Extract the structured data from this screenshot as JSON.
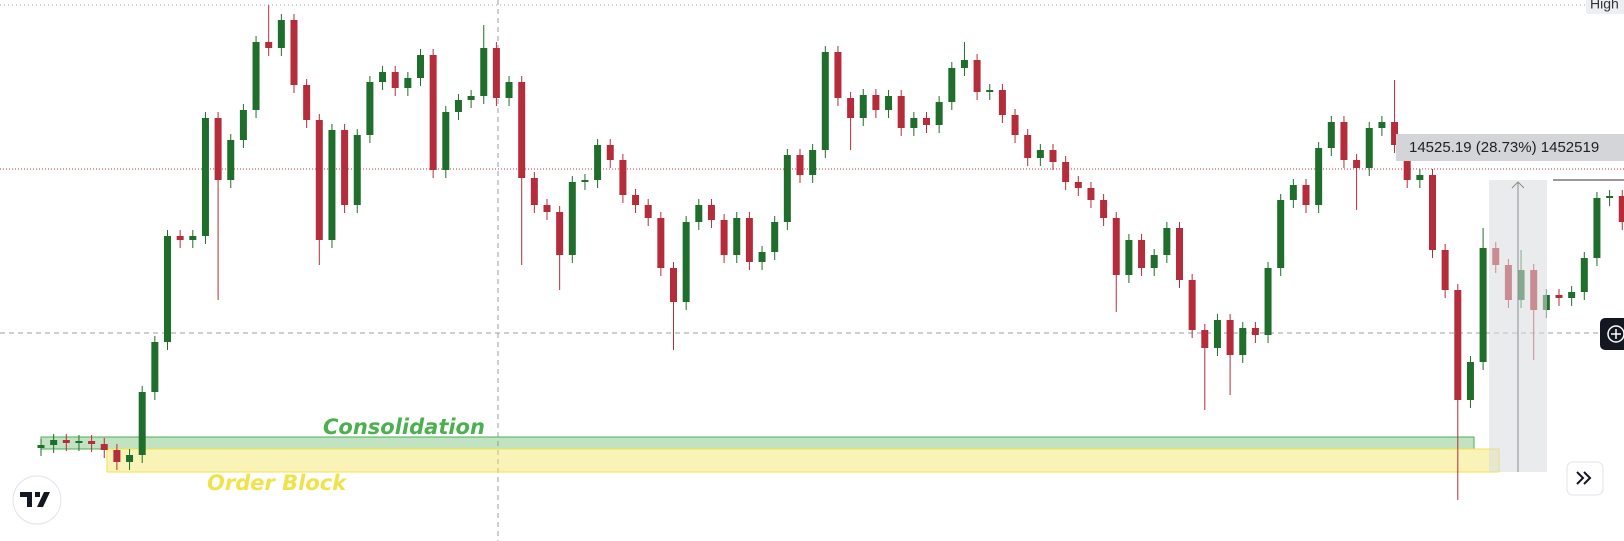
{
  "chart_data": {
    "type": "candlestick",
    "up_color": "#1f6e2c",
    "down_color": "#b52d3b",
    "ylim": [
      46950,
      74000
    ],
    "open": [
      51600,
      51750,
      52000,
      51850,
      51950,
      51800,
      51500,
      50900,
      51250,
      54400,
      56900,
      62200,
      62000,
      62200,
      68100,
      65000,
      67000,
      68500,
      71900,
      71600,
      73000,
      69750,
      68000,
      62000,
      67500,
      63750,
      67250,
      69900,
      70400,
      69600,
      70100,
      71250,
      65500,
      68400,
      69000,
      69200,
      71600,
      69100,
      69900,
      65100,
      63750,
      63400,
      61250,
      64900,
      65000,
      66750,
      66000,
      64250,
      63750,
      63100,
      60600,
      58900,
      62900,
      63750,
      63000,
      61250,
      63100,
      60900,
      61400,
      62900,
      66250,
      65250,
      66500,
      71400,
      69100,
      68100,
      69250,
      68500,
      69200,
      67600,
      68100,
      67750,
      68900,
      70600,
      71000,
      69400,
      69500,
      68250,
      67250,
      66100,
      66500,
      65900,
      64900,
      64600,
      64000,
      63100,
      60250,
      62000,
      60600,
      61250,
      62600,
      60000,
      57500,
      56600,
      58000,
      56250,
      57600,
      57250,
      60600,
      64000,
      64750,
      63750,
      66600,
      67900,
      66000,
      65600,
      67600,
      67900,
      66750,
      65000,
      65250,
      61500,
      59500,
      54000,
      55900,
      61600,
      60750,
      59000,
      60500,
      58500,
      59250,
      59100,
      59400,
      61100,
      64100,
      64200
    ],
    "high": [
      52050,
      52300,
      52300,
      52250,
      52250,
      52100,
      51800,
      51550,
      54700,
      57200,
      62500,
      62500,
      62500,
      68400,
      68400,
      67300,
      68800,
      72200,
      73750,
      73300,
      73300,
      70050,
      68300,
      67800,
      67800,
      67550,
      70200,
      70700,
      70700,
      70400,
      71550,
      71550,
      68700,
      69300,
      69500,
      72750,
      71900,
      70200,
      70200,
      65400,
      64050,
      63700,
      65200,
      65300,
      67050,
      67050,
      66300,
      64550,
      64050,
      63400,
      60900,
      63200,
      64050,
      64050,
      63300,
      63400,
      63400,
      61700,
      63200,
      66550,
      66550,
      66800,
      71700,
      71700,
      69400,
      69550,
      69550,
      69500,
      69500,
      68400,
      68400,
      69200,
      70900,
      71900,
      71300,
      69800,
      69800,
      68550,
      67550,
      66800,
      66800,
      66200,
      65200,
      64900,
      64300,
      63400,
      62300,
      62300,
      61550,
      62900,
      62900,
      60300,
      57800,
      58300,
      58300,
      57900,
      57900,
      60900,
      64300,
      65050,
      65050,
      66900,
      68200,
      68200,
      66300,
      67900,
      68200,
      70000,
      67050,
      65550,
      65550,
      61800,
      59800,
      56200,
      62600,
      61900,
      61050,
      61500,
      60800,
      59550,
      59550,
      59700,
      61400,
      64400,
      64500,
      64500
    ],
    "low": [
      51200,
      51350,
      51450,
      51450,
      51400,
      51100,
      50500,
      50500,
      50850,
      54000,
      56500,
      61600,
      61600,
      61800,
      59000,
      64600,
      66600,
      68100,
      71200,
      71200,
      69350,
      67600,
      60750,
      61600,
      63350,
      63350,
      66850,
      69500,
      69200,
      69200,
      69700,
      65100,
      65100,
      68000,
      68600,
      68800,
      68700,
      68700,
      60750,
      63350,
      63000,
      59500,
      60850,
      64500,
      64600,
      65600,
      63850,
      63350,
      62700,
      60200,
      56500,
      58500,
      62500,
      62600,
      60850,
      60850,
      60500,
      60500,
      61000,
      62500,
      64850,
      64850,
      66100,
      68700,
      66500,
      67700,
      68100,
      68100,
      67200,
      67200,
      67350,
      67350,
      68500,
      70200,
      69000,
      69000,
      67850,
      66850,
      65700,
      65700,
      65500,
      64500,
      64200,
      63600,
      62700,
      58400,
      59850,
      60200,
      60200,
      60850,
      59600,
      57100,
      53500,
      56200,
      54250,
      55850,
      56850,
      56850,
      60200,
      63600,
      63350,
      63350,
      66200,
      65600,
      63500,
      65200,
      67200,
      66350,
      64600,
      64600,
      61100,
      59100,
      49000,
      53600,
      55500,
      60350,
      58600,
      58600,
      56000,
      58100,
      58700,
      58700,
      59000,
      60700,
      63700,
      62500
    ],
    "close": [
      51750,
      52000,
      51850,
      51950,
      51800,
      51500,
      50900,
      51250,
      54400,
      56900,
      62200,
      62000,
      62200,
      68100,
      65000,
      67000,
      68500,
      71900,
      71600,
      73000,
      69750,
      68000,
      62000,
      67500,
      63750,
      67250,
      69900,
      70400,
      69600,
      70100,
      71250,
      65500,
      68400,
      69000,
      69200,
      71600,
      69100,
      69900,
      65100,
      63750,
      63400,
      61250,
      64900,
      65000,
      66750,
      66000,
      64250,
      63750,
      63100,
      60600,
      58900,
      62900,
      63750,
      63000,
      61250,
      63100,
      60900,
      61400,
      62900,
      66250,
      65250,
      66500,
      71400,
      69100,
      68100,
      69250,
      68500,
      69200,
      67600,
      68100,
      67750,
      68900,
      70600,
      71000,
      69400,
      69500,
      68250,
      67250,
      66100,
      66500,
      65900,
      64900,
      64600,
      64000,
      63100,
      60250,
      62000,
      60600,
      61250,
      62600,
      60000,
      57500,
      56600,
      58000,
      56250,
      57600,
      57250,
      60600,
      64000,
      64750,
      63750,
      66600,
      67900,
      66000,
      65600,
      67600,
      67900,
      66750,
      65000,
      65250,
      61500,
      59500,
      54000,
      55900,
      61600,
      60750,
      59000,
      60500,
      58500,
      59250,
      59100,
      59400,
      61100,
      64100,
      64200,
      62900
    ],
    "zones": [
      {
        "label": "Consolidation",
        "top": 52150,
        "bottom": 51550,
        "color": "#4caf50"
      },
      {
        "label": "Order Block",
        "top": 51550,
        "bottom": 50400,
        "color": "#f2e24a"
      }
    ],
    "measure_label": "14525.19 (28.73%) 1452519",
    "corner_label": "High"
  }
}
